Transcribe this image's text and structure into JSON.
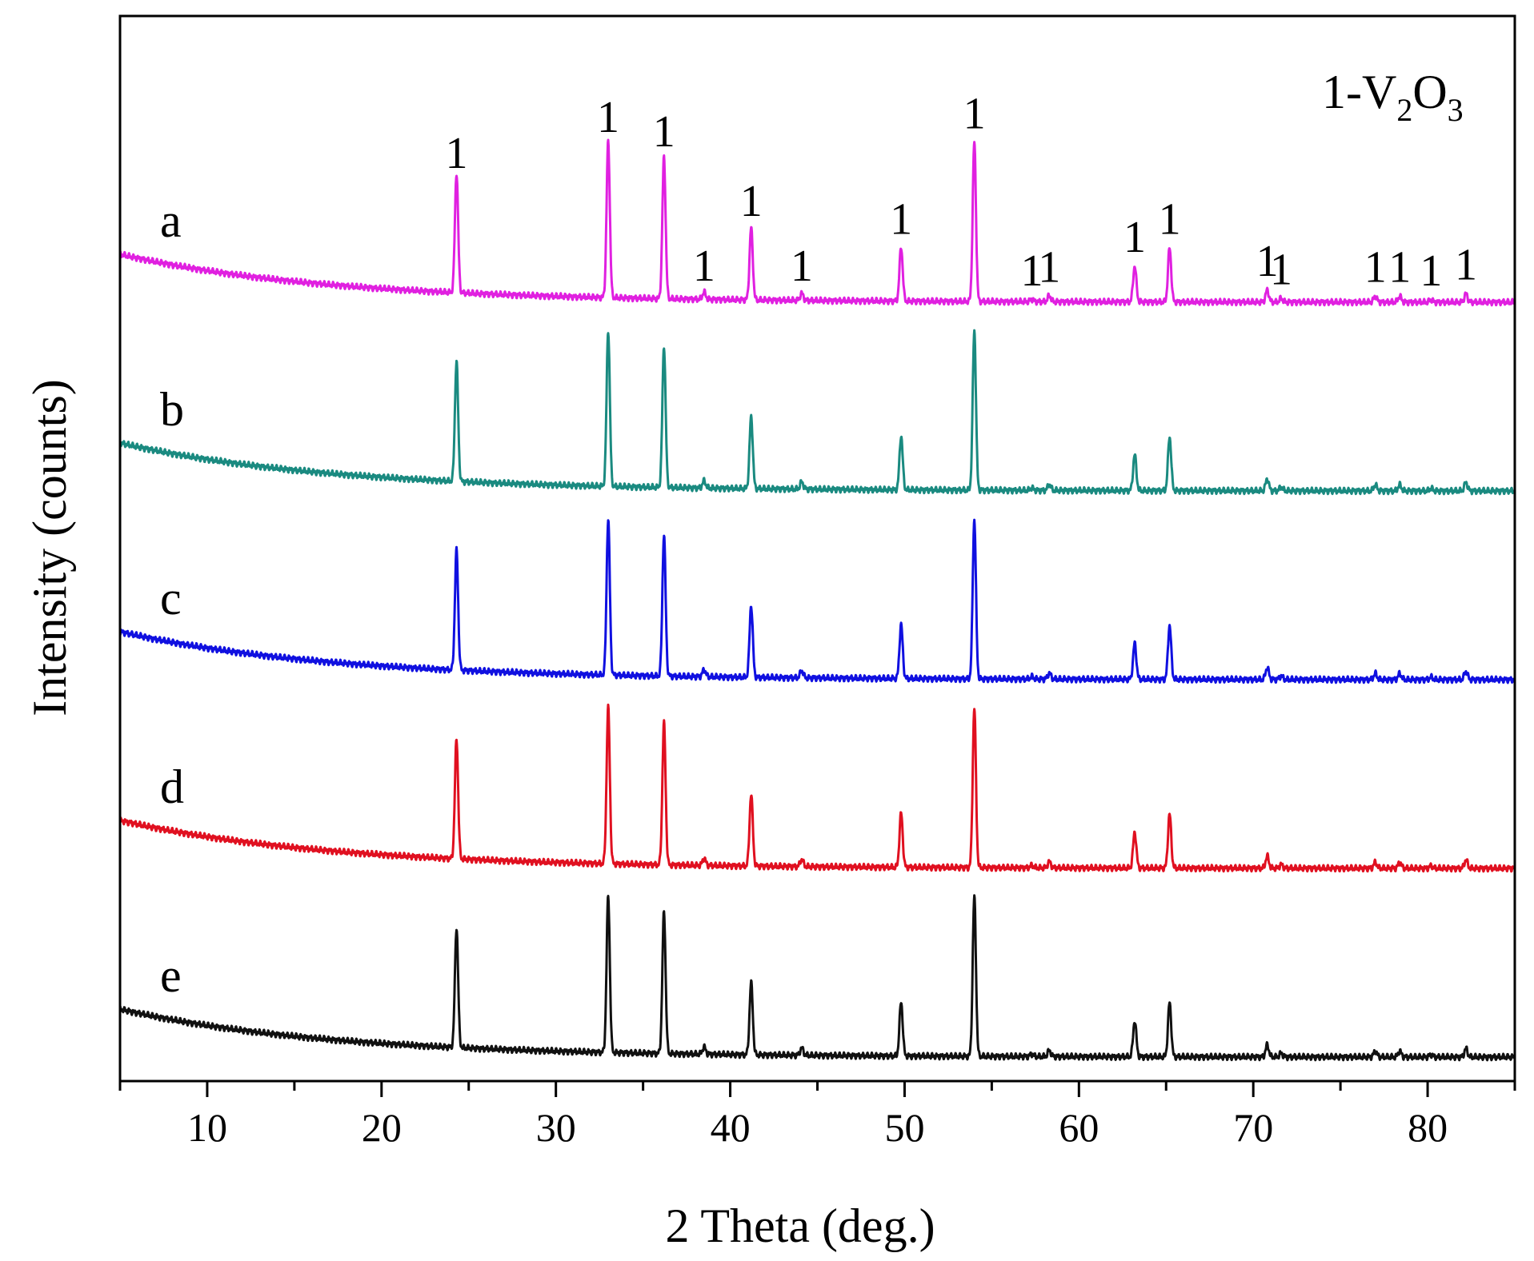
{
  "chart_data": {
    "type": "line",
    "title": "",
    "xlabel": "2 Theta (deg.)",
    "ylabel": "Intensity (counts)",
    "xlim": [
      5,
      85
    ],
    "xticks": [
      10,
      20,
      30,
      40,
      50,
      60,
      70,
      80
    ],
    "legend": {
      "phase_number": "1",
      "phase_base": "-V",
      "phase_sub1": "2",
      "phase_mid": "O",
      "phase_sub2": "3",
      "placement": "top-right"
    },
    "peak_marker": "1",
    "peaks": [
      {
        "x": 24.3,
        "h": 1.0
      },
      {
        "x": 33.0,
        "h": 1.3
      },
      {
        "x": 36.2,
        "h": 1.18
      },
      {
        "x": 38.5,
        "h": 0.06
      },
      {
        "x": 41.2,
        "h": 0.6
      },
      {
        "x": 44.1,
        "h": 0.06
      },
      {
        "x": 49.8,
        "h": 0.45
      },
      {
        "x": 54.0,
        "h": 1.33
      },
      {
        "x": 57.3,
        "h": 0.02
      },
      {
        "x": 58.3,
        "h": 0.05
      },
      {
        "x": 63.2,
        "h": 0.3
      },
      {
        "x": 65.2,
        "h": 0.45
      },
      {
        "x": 70.8,
        "h": 0.1
      },
      {
        "x": 71.6,
        "h": 0.03
      },
      {
        "x": 77.0,
        "h": 0.05
      },
      {
        "x": 78.4,
        "h": 0.05
      },
      {
        "x": 80.2,
        "h": 0.02
      },
      {
        "x": 82.2,
        "h": 0.07
      }
    ],
    "series": [
      {
        "name": "a",
        "color": "#e020e0",
        "offset": 4
      },
      {
        "name": "b",
        "color": "#1a8a80",
        "offset": 3
      },
      {
        "name": "c",
        "color": "#1010e0",
        "offset": 2
      },
      {
        "name": "d",
        "color": "#e01020",
        "offset": 1
      },
      {
        "name": "e",
        "color": "#111111",
        "offset": 0
      }
    ]
  }
}
